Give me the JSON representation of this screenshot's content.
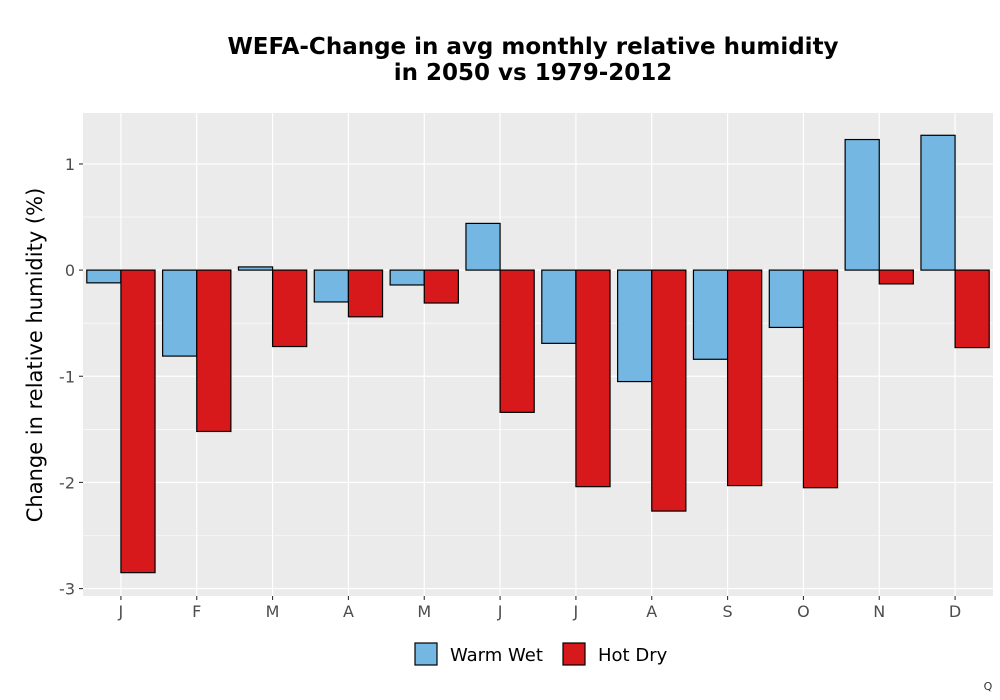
{
  "chart_data": {
    "type": "bar",
    "title_lines": [
      "WEFA-Change in avg monthly relative humidity",
      "in 2050 vs 1979-2012"
    ],
    "xlabel": "",
    "ylabel": "Change in relative humidity (%)",
    "categories": [
      "J",
      "F",
      "M",
      "A",
      "M",
      "J",
      "J",
      "A",
      "S",
      "O",
      "N",
      "D"
    ],
    "series": [
      {
        "name": "Warm Wet",
        "color": "#74b7e2",
        "values": [
          -0.12,
          -0.81,
          0.03,
          -0.3,
          -0.14,
          0.44,
          -0.69,
          -1.05,
          -0.84,
          -0.54,
          1.23,
          1.27
        ]
      },
      {
        "name": "Hot Dry",
        "color": "#d7191c",
        "values": [
          -2.85,
          -1.52,
          -0.72,
          -0.44,
          -0.31,
          -1.34,
          -2.04,
          -2.27,
          -2.03,
          -2.05,
          -0.13,
          -0.73
        ]
      }
    ],
    "ylim": [
      -3.07,
      1.48
    ],
    "yticks": [
      -3,
      -2,
      -1,
      0,
      1
    ],
    "ytick_labels": [
      "-3",
      "-2",
      "-1",
      "0",
      "1"
    ],
    "grid": true,
    "legend_position": "bottom"
  },
  "corner_mark": "Q"
}
